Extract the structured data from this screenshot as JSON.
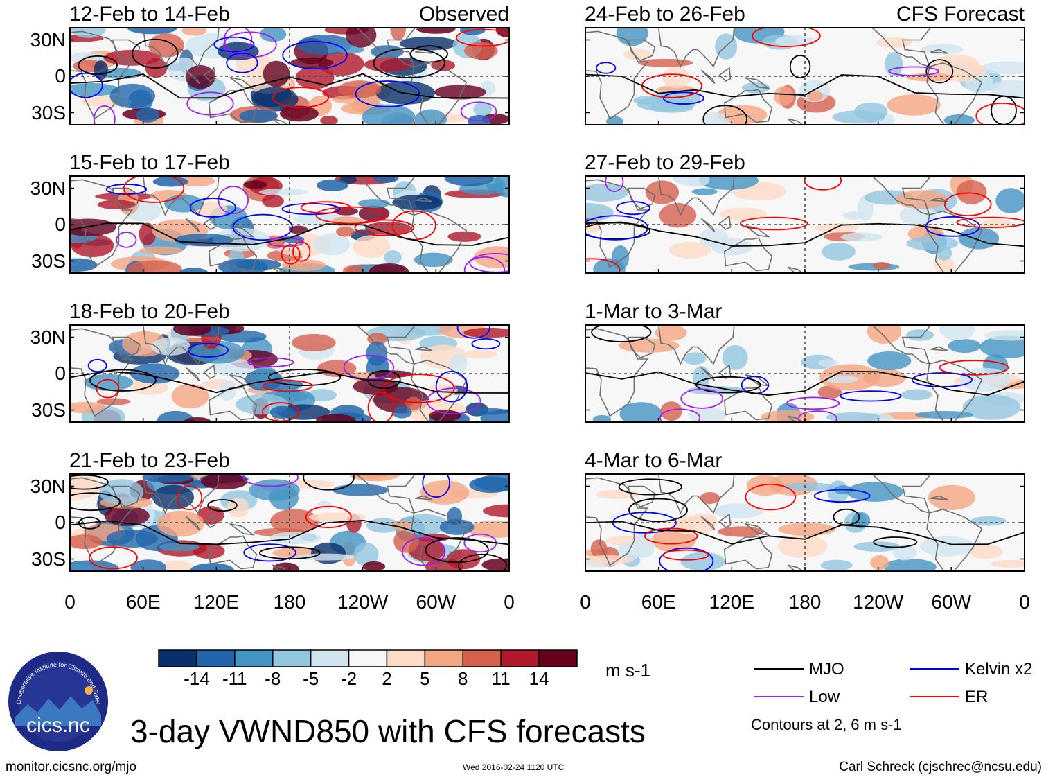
{
  "chart_data": {
    "type": "heatmap",
    "title": "3-day VWND850 with CFS forecasts",
    "variable": "VWND850",
    "units": "m s-1",
    "columns": {
      "left": "Observed",
      "right": "CFS Forecast"
    },
    "lon_ticks": [
      "0",
      "60E",
      "120E",
      "180",
      "120W",
      "60W",
      "0"
    ],
    "lat_ticks": [
      "30N",
      "0",
      "30S"
    ],
    "lat_range": [
      -40,
      40
    ],
    "lon_range": [
      0,
      360
    ],
    "panels": [
      {
        "id": "p1",
        "column": "left",
        "period": "12-Feb to 14-Feb",
        "source": "Observed"
      },
      {
        "id": "p2",
        "column": "left",
        "period": "15-Feb to 17-Feb",
        "source": "Observed"
      },
      {
        "id": "p3",
        "column": "left",
        "period": "18-Feb to 20-Feb",
        "source": "Observed"
      },
      {
        "id": "p4",
        "column": "left",
        "period": "21-Feb to 23-Feb",
        "source": "Observed"
      },
      {
        "id": "p5",
        "column": "right",
        "period": "24-Feb to 26-Feb",
        "source": "CFS Forecast"
      },
      {
        "id": "p6",
        "column": "right",
        "period": "27-Feb to 29-Feb",
        "source": "CFS Forecast"
      },
      {
        "id": "p7",
        "column": "right",
        "period": "1-Mar to 3-Mar",
        "source": "CFS Forecast"
      },
      {
        "id": "p8",
        "column": "right",
        "period": "4-Mar to 6-Mar",
        "source": "CFS Forecast"
      }
    ],
    "colorbar": {
      "labels": [
        "-14",
        "-11",
        "-8",
        "-5",
        "-2",
        "2",
        "5",
        "8",
        "11",
        "14"
      ],
      "colors": [
        "#08306b",
        "#2166ac",
        "#4393c3",
        "#92c5de",
        "#d1e5f0",
        "#f7f7f7",
        "#fddbc7",
        "#f4a582",
        "#d6604d",
        "#b2182b",
        "#67001f"
      ]
    },
    "legend": {
      "items": [
        {
          "name": "MJO",
          "color": "#000000"
        },
        {
          "name": "Kelvin x2",
          "color": "#0000ff"
        },
        {
          "name": "Low",
          "color": "#a020f0"
        },
        {
          "name": "ER",
          "color": "#ff0000"
        }
      ],
      "note": "Contours at 2, 6 m s-1"
    }
  },
  "footer": {
    "logo_text": "cics.nc",
    "logo_ring_text": "Cooperative Institute for Climate and Satellites",
    "left": "monitor.cicsnc.org/mjo",
    "center": "Wed 2016-02-24 1120 UTC",
    "right": "Carl Schreck (cjschrec@ncsu.edu)"
  }
}
